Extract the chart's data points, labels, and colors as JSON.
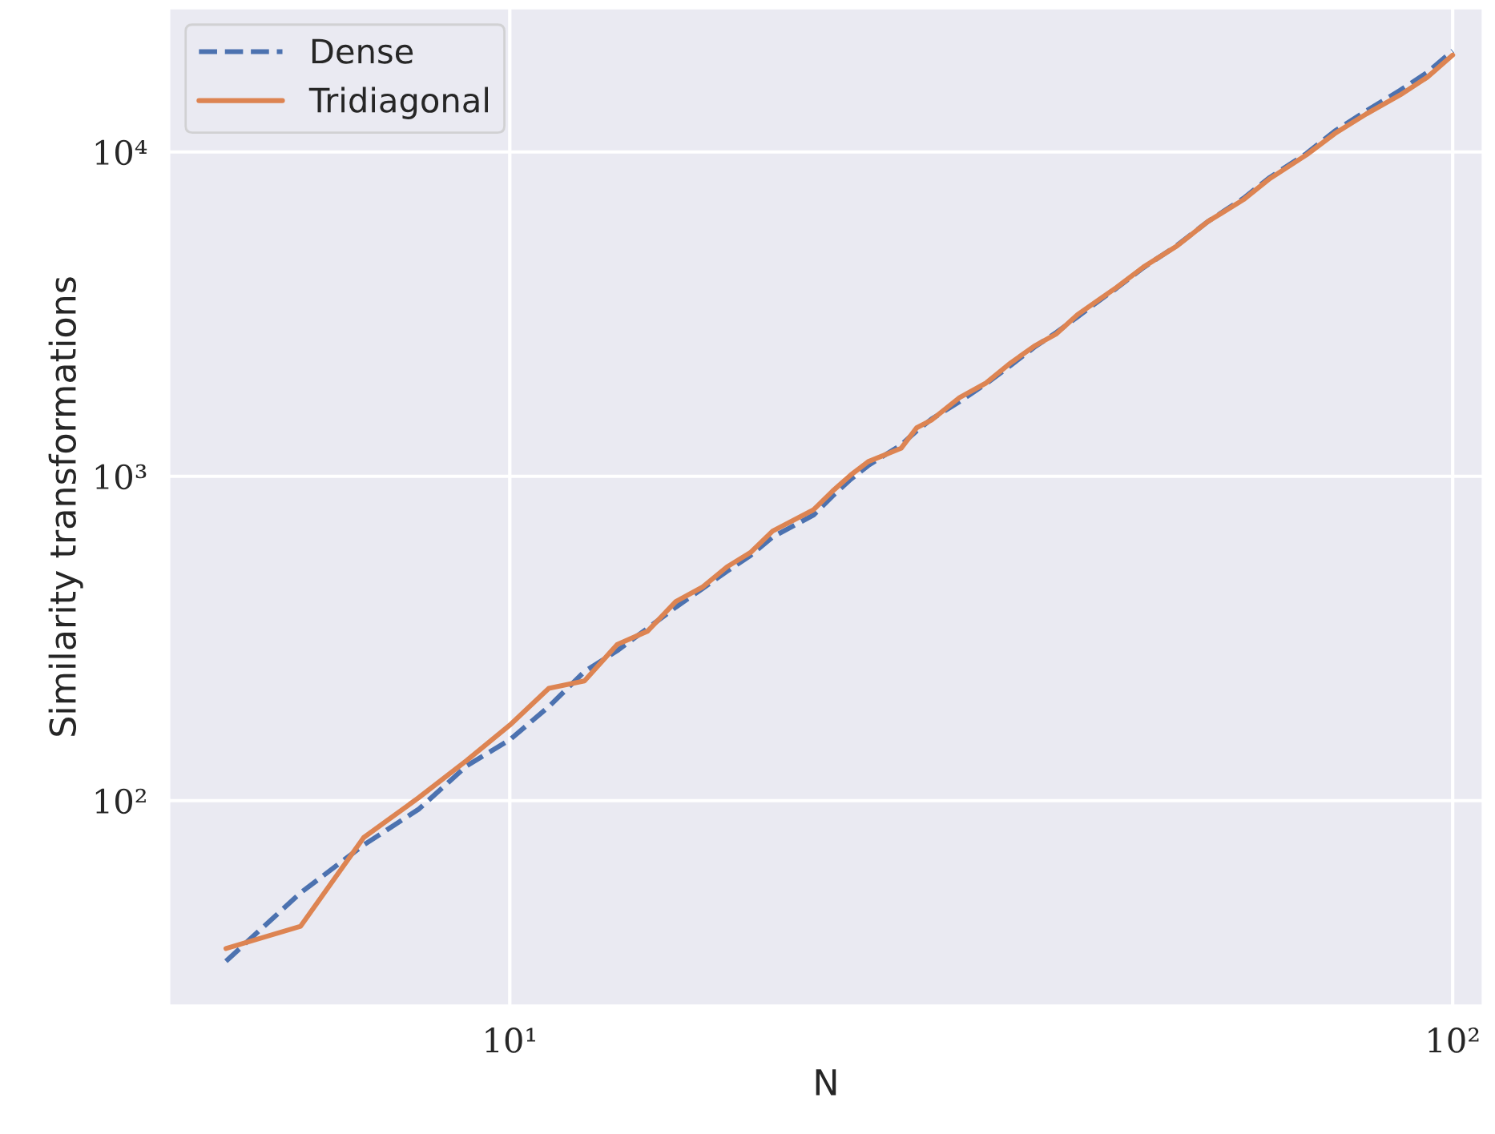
{
  "chart_data": {
    "type": "line",
    "xlabel": "N",
    "ylabel": "Similarity transformations",
    "x": [
      5,
      6,
      7,
      8,
      9,
      10,
      11,
      12,
      13,
      14,
      15,
      16,
      17,
      18,
      19,
      21,
      22,
      23,
      24,
      26,
      27,
      28,
      30,
      32,
      34,
      36,
      38,
      40,
      42,
      44,
      47,
      51,
      55,
      60,
      64,
      70,
      75,
      81,
      88,
      94,
      100
    ],
    "series": [
      {
        "name": "Dense",
        "color": "#4c72b0",
        "line_style": "dashed",
        "values": [
          32,
          52,
          73,
          94,
          128,
          154,
          195,
          250,
          290,
          340,
          395,
          450,
          510,
          570,
          650,
          760,
          870,
          980,
          1080,
          1250,
          1380,
          1500,
          1700,
          1930,
          2200,
          2500,
          2780,
          3100,
          3450,
          3800,
          4400,
          5150,
          6100,
          7200,
          8350,
          9900,
          11600,
          13400,
          15500,
          17600,
          20500
        ]
      },
      {
        "name": "Tridiagonal",
        "color": "#dd8452",
        "line_style": "solid",
        "values": [
          35,
          41,
          77,
          102,
          133,
          171,
          222,
          234,
          303,
          333,
          411,
          455,
          526,
          582,
          678,
          789,
          901,
          1010,
          1110,
          1220,
          1410,
          1490,
          1750,
          1940,
          2240,
          2520,
          2750,
          3150,
          3480,
          3820,
          4420,
          5130,
          6100,
          7130,
          8280,
          9800,
          11400,
          13100,
          15000,
          17000,
          19900
        ]
      }
    ],
    "log": "xy",
    "xlim": [
      4.35,
      107.7
    ],
    "ylim": [
      23.3,
      27800
    ],
    "xticks": [
      {
        "value": 10,
        "label": "10¹"
      },
      {
        "value": 100,
        "label": "10²"
      }
    ],
    "yticks": [
      {
        "value": 100,
        "label": "10²"
      },
      {
        "value": 1000,
        "label": "10³"
      },
      {
        "value": 10000,
        "label": "10⁴"
      }
    ],
    "grid": true,
    "legend": "top left"
  }
}
